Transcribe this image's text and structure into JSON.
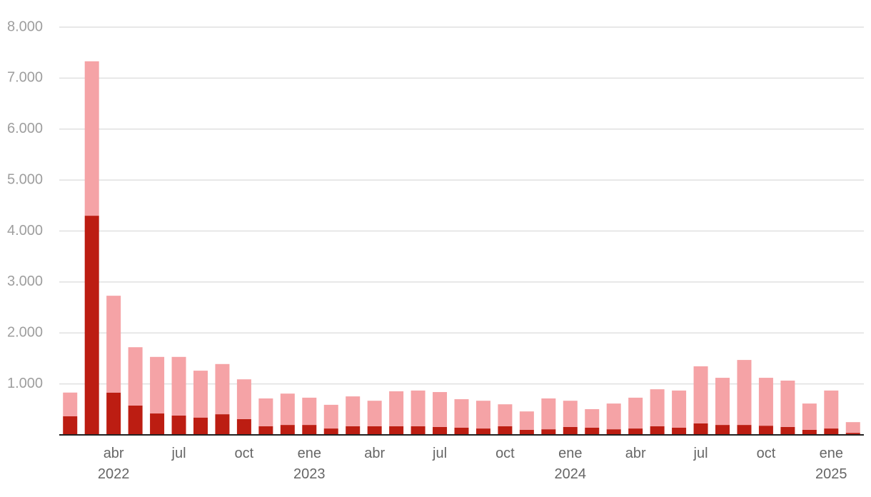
{
  "chart_data": {
    "type": "stacked-bar",
    "categories": [
      null,
      null,
      "abr\n2022",
      null,
      null,
      "jul",
      null,
      null,
      "oct",
      null,
      null,
      "ene\n2023",
      null,
      null,
      "abr",
      null,
      null,
      "jul",
      null,
      null,
      "oct",
      null,
      null,
      "ene\n2024",
      null,
      null,
      "abr",
      null,
      null,
      "jul",
      null,
      null,
      "oct",
      null,
      null,
      "ene\n2025",
      null
    ],
    "series": [
      {
        "color": "#bc1d12",
        "values": [
          365,
          4300,
          830,
          575,
          420,
          380,
          340,
          405,
          310,
          170,
          195,
          195,
          125,
          170,
          170,
          170,
          170,
          155,
          140,
          125,
          170,
          100,
          110,
          155,
          140,
          110,
          125,
          170,
          140,
          225,
          195,
          195,
          180,
          155,
          100,
          125,
          40
        ]
      },
      {
        "color": "#f5a3a6",
        "values": [
          465,
          3030,
          1900,
          1145,
          1110,
          1150,
          920,
          985,
          780,
          545,
          615,
          535,
          465,
          585,
          500,
          685,
          700,
          685,
          560,
          545,
          430,
          360,
          605,
          515,
          365,
          505,
          605,
          725,
          730,
          1120,
          925,
          1275,
          940,
          910,
          515,
          745,
          210
        ]
      }
    ],
    "ylim": [
      0,
      8000
    ],
    "yticks": [
      {
        "value": 1000,
        "label": "1.000"
      },
      {
        "value": 2000,
        "label": "2.000"
      },
      {
        "value": 3000,
        "label": "3.000"
      },
      {
        "value": 4000,
        "label": "4.000"
      },
      {
        "value": 5000,
        "label": "5.000"
      },
      {
        "value": 6000,
        "label": "6.000"
      },
      {
        "value": 7000,
        "label": "7.000"
      },
      {
        "value": 8000,
        "label": "8.000"
      }
    ],
    "grid": true
  }
}
